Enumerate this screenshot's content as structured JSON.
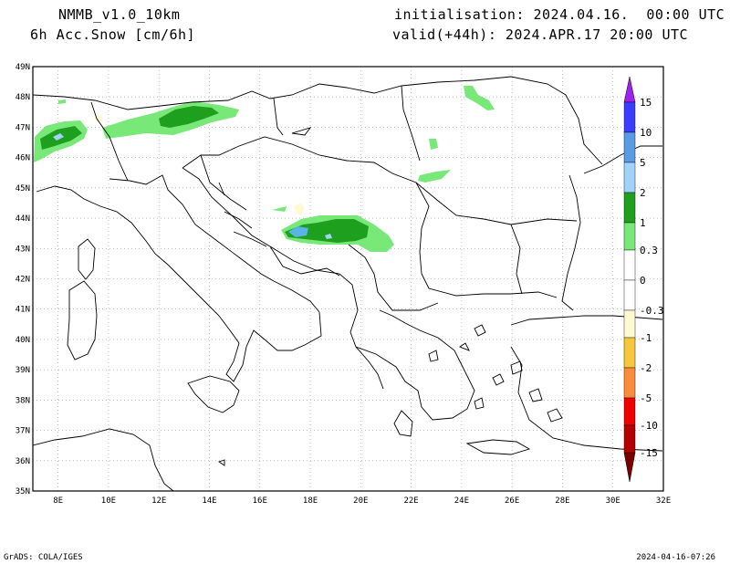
{
  "header": {
    "model": "NMMB_v1.0_10km",
    "field": "6h Acc.Snow [cm/6h]",
    "initialisation": "initialisation: 2024.04.16.  00:00 UTC",
    "valid": "valid(+44h): 2024.APR.17 20:00 UTC"
  },
  "footer": {
    "credit": "GrADS: COLA/IGES",
    "timestamp": "2024-04-16-07:26"
  },
  "map": {
    "lat_labels": [
      "49N",
      "48N",
      "47N",
      "46N",
      "45N",
      "44N",
      "43N",
      "42N",
      "41N",
      "40N",
      "39N",
      "38N",
      "37N",
      "36N",
      "35N"
    ],
    "lon_labels": [
      "8E",
      "10E",
      "12E",
      "14E",
      "16E",
      "18E",
      "20E",
      "22E",
      "24E",
      "26E",
      "28E",
      "30E",
      "32E"
    ],
    "lat_range": [
      35,
      49
    ],
    "lon_range": [
      7,
      32
    ],
    "grid": true
  },
  "legend": {
    "levels": [
      "15",
      "10",
      "5",
      "2",
      "1",
      "0.3",
      "0",
      "-0.3",
      "-1",
      "-2",
      "-5",
      "-10",
      "-15"
    ],
    "colors": {
      "above_15": "#a020f0",
      "10_15": "#3c3cff",
      "5_10": "#5a9be6",
      "2_5": "#a0d2fa",
      "1_2": "#1ea01e",
      "0.3_1": "#78e878",
      "0_0.3": "#ffffff",
      "-0.3_0": "#ffffff",
      "-1_-0.3": "#fffad2",
      "-2_-1": "#f5c83c",
      "-5_-2": "#fa8c3c",
      "-10_-5": "#f00000",
      "-15_-10": "#b40000",
      "below_-15": "#780000"
    }
  }
}
